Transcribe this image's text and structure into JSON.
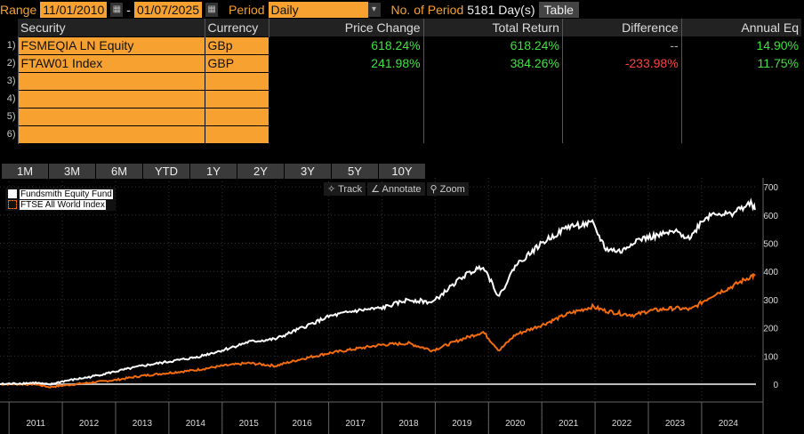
{
  "header": {
    "range_label": "Range",
    "start_date": "11/01/2010",
    "sep": "-",
    "end_date": "01/07/2025",
    "period_label": "Period",
    "period": "Daily",
    "nperiod_label": "No. of Period",
    "nperiod": "5181 Day(s)",
    "table_btn": "Table"
  },
  "table": {
    "columns": [
      "Security",
      "Currency",
      "Price Change",
      "Total Return",
      "Difference",
      "Annual Eq"
    ],
    "rows": [
      {
        "n": "1)",
        "security": "FSMEQIA LN Equity",
        "currency": "GBp",
        "price_change": "618.24%",
        "total_return": "618.24%",
        "difference": "--",
        "annual_eq": "14.90%"
      },
      {
        "n": "2)",
        "security": "FTAW01 Index",
        "currency": "GBP",
        "price_change": "241.98%",
        "total_return": "384.26%",
        "difference": "-233.98%",
        "annual_eq": "11.75%"
      },
      {
        "n": "3)"
      },
      {
        "n": "4)"
      },
      {
        "n": "5)"
      },
      {
        "n": "6)"
      }
    ]
  },
  "ranges": [
    "1M",
    "3M",
    "6M",
    "YTD",
    "1Y",
    "2Y",
    "3Y",
    "5Y",
    "10Y"
  ],
  "tools": {
    "track": "Track",
    "annotate": "Annotate",
    "zoom": "Zoom"
  },
  "chart_data": {
    "type": "line",
    "ylim": [
      -50,
      700
    ],
    "xlim": [
      2010.83,
      2025.02
    ],
    "yticks": [
      0,
      100,
      200,
      300,
      400,
      500,
      600,
      700
    ],
    "xtick_labels": [
      "2011",
      "2012",
      "2013",
      "2014",
      "2015",
      "2016",
      "2017",
      "2018",
      "2019",
      "2020",
      "2021",
      "2022",
      "2023",
      "2024"
    ],
    "series": [
      {
        "name": "Fundsmith Equity Fund",
        "color": "#ffffff",
        "x": [
          2010.83,
          2011.5,
          2011.75,
          2012,
          2012.5,
          2013,
          2013.5,
          2014,
          2014.5,
          2015,
          2015.5,
          2016,
          2016.5,
          2017,
          2017.5,
          2018,
          2018.5,
          2018.95,
          2019.5,
          2019.9,
          2020.2,
          2020.5,
          2021,
          2021.5,
          2021.95,
          2022.2,
          2022.5,
          2022.75,
          2023,
          2023.5,
          2023.8,
          2024,
          2024.25,
          2024.5,
          2024.75,
          2024.95,
          2025.0
        ],
        "y": [
          0,
          5,
          -2,
          10,
          25,
          45,
          65,
          80,
          95,
          120,
          150,
          160,
          200,
          240,
          260,
          270,
          300,
          290,
          380,
          420,
          310,
          420,
          500,
          560,
          570,
          480,
          470,
          510,
          520,
          540,
          520,
          580,
          610,
          600,
          625,
          640,
          618
        ]
      },
      {
        "name": "FTSE All World Index",
        "color": "#f26b0f",
        "x": [
          2010.83,
          2011.5,
          2011.75,
          2012,
          2012.5,
          2013,
          2013.5,
          2014,
          2014.5,
          2015,
          2015.5,
          2016,
          2016.5,
          2017,
          2017.5,
          2018,
          2018.5,
          2018.95,
          2019.5,
          2019.9,
          2020.2,
          2020.5,
          2021,
          2021.5,
          2021.95,
          2022.2,
          2022.5,
          2022.75,
          2023,
          2023.5,
          2023.8,
          2024,
          2024.25,
          2024.5,
          2024.75,
          2024.95,
          2025.0
        ],
        "y": [
          0,
          0,
          -10,
          -5,
          5,
          15,
          30,
          40,
          50,
          65,
          75,
          65,
          90,
          110,
          125,
          140,
          145,
          120,
          160,
          185,
          120,
          175,
          210,
          250,
          275,
          260,
          250,
          245,
          260,
          270,
          265,
          290,
          320,
          340,
          365,
          385,
          384
        ]
      }
    ]
  }
}
